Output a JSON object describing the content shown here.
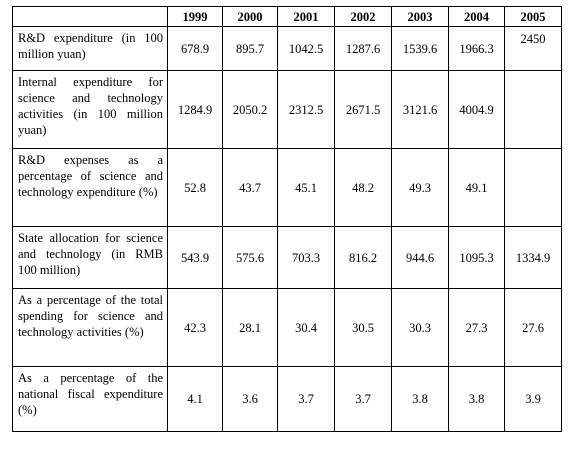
{
  "table": {
    "corner": "",
    "years": [
      "1999",
      "2000",
      "2001",
      "2002",
      "2003",
      "2004",
      "2005"
    ],
    "rows": [
      {
        "label": "R&D expenditure (in 100 million yuan)",
        "values": [
          "678.9",
          "895.7",
          "1042.5",
          "1287.6",
          "1539.6",
          "1966.3",
          "2450"
        ]
      },
      {
        "label": "Internal expenditure for science and technology activities (in 100 million yuan)",
        "values": [
          "1284.9",
          "2050.2",
          "2312.5",
          "2671.5",
          "3121.6",
          "4004.9",
          ""
        ]
      },
      {
        "label": "R&D expenses as a percentage of science and technology expenditure (%)",
        "values": [
          "52.8",
          "43.7",
          "45.1",
          "48.2",
          "49.3",
          "49.1",
          ""
        ]
      },
      {
        "label": "State allocation for science and technology (in RMB 100 million)",
        "values": [
          "543.9",
          "575.6",
          "703.3",
          "816.2",
          "944.6",
          "1095.3",
          "1334.9"
        ]
      },
      {
        "label": "As a percentage of the total spending for science and technology activities (%)",
        "values": [
          "42.3",
          "28.1",
          "30.4",
          "30.5",
          "30.3",
          "27.3",
          "27.6"
        ]
      },
      {
        "label": "As a percentage of the national fiscal expenditure (%)",
        "values": [
          "4.1",
          "3.6",
          "3.7",
          "3.7",
          "3.8",
          "3.8",
          "3.9"
        ]
      }
    ]
  }
}
